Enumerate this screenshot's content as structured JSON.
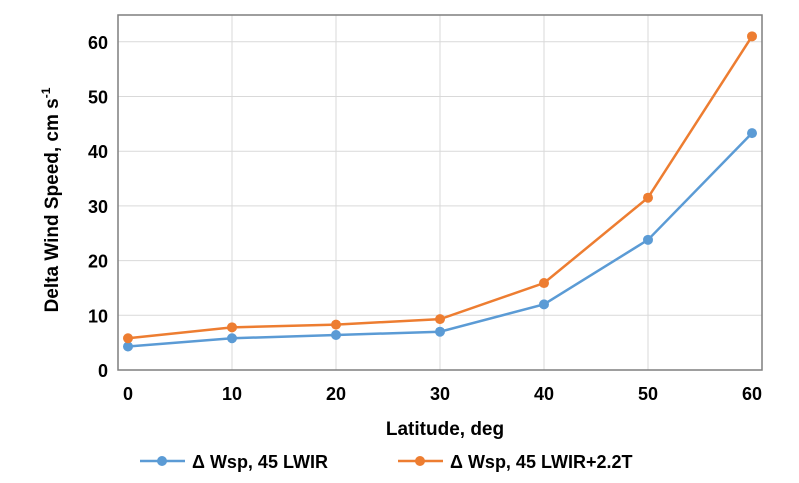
{
  "chart_data": {
    "type": "line",
    "title": "",
    "xlabel": "Latitude, deg",
    "ylabel": "Delta Wind Speed, cm s",
    "ylabel_superscript": "-1",
    "x": [
      0,
      10,
      20,
      30,
      40,
      50,
      60
    ],
    "xlim": [
      0,
      60
    ],
    "ylim": [
      0,
      65
    ],
    "xticks": [
      "0",
      "10",
      "20",
      "30",
      "40",
      "50",
      "60"
    ],
    "yticks": [
      "0",
      "10",
      "20",
      "30",
      "40",
      "50",
      "60"
    ],
    "grid": true,
    "legend_position": "bottom",
    "series": [
      {
        "name": "Δ Wsp, 45 LWIR",
        "color": "#5b9bd5",
        "values": [
          4.3,
          5.8,
          6.4,
          7.0,
          12.0,
          23.8,
          43.3
        ]
      },
      {
        "name": "Δ Wsp, 45 LWIR+2.2T",
        "color": "#ed7d31",
        "values": [
          5.8,
          7.8,
          8.3,
          9.3,
          15.9,
          31.5,
          61.0
        ]
      }
    ]
  }
}
